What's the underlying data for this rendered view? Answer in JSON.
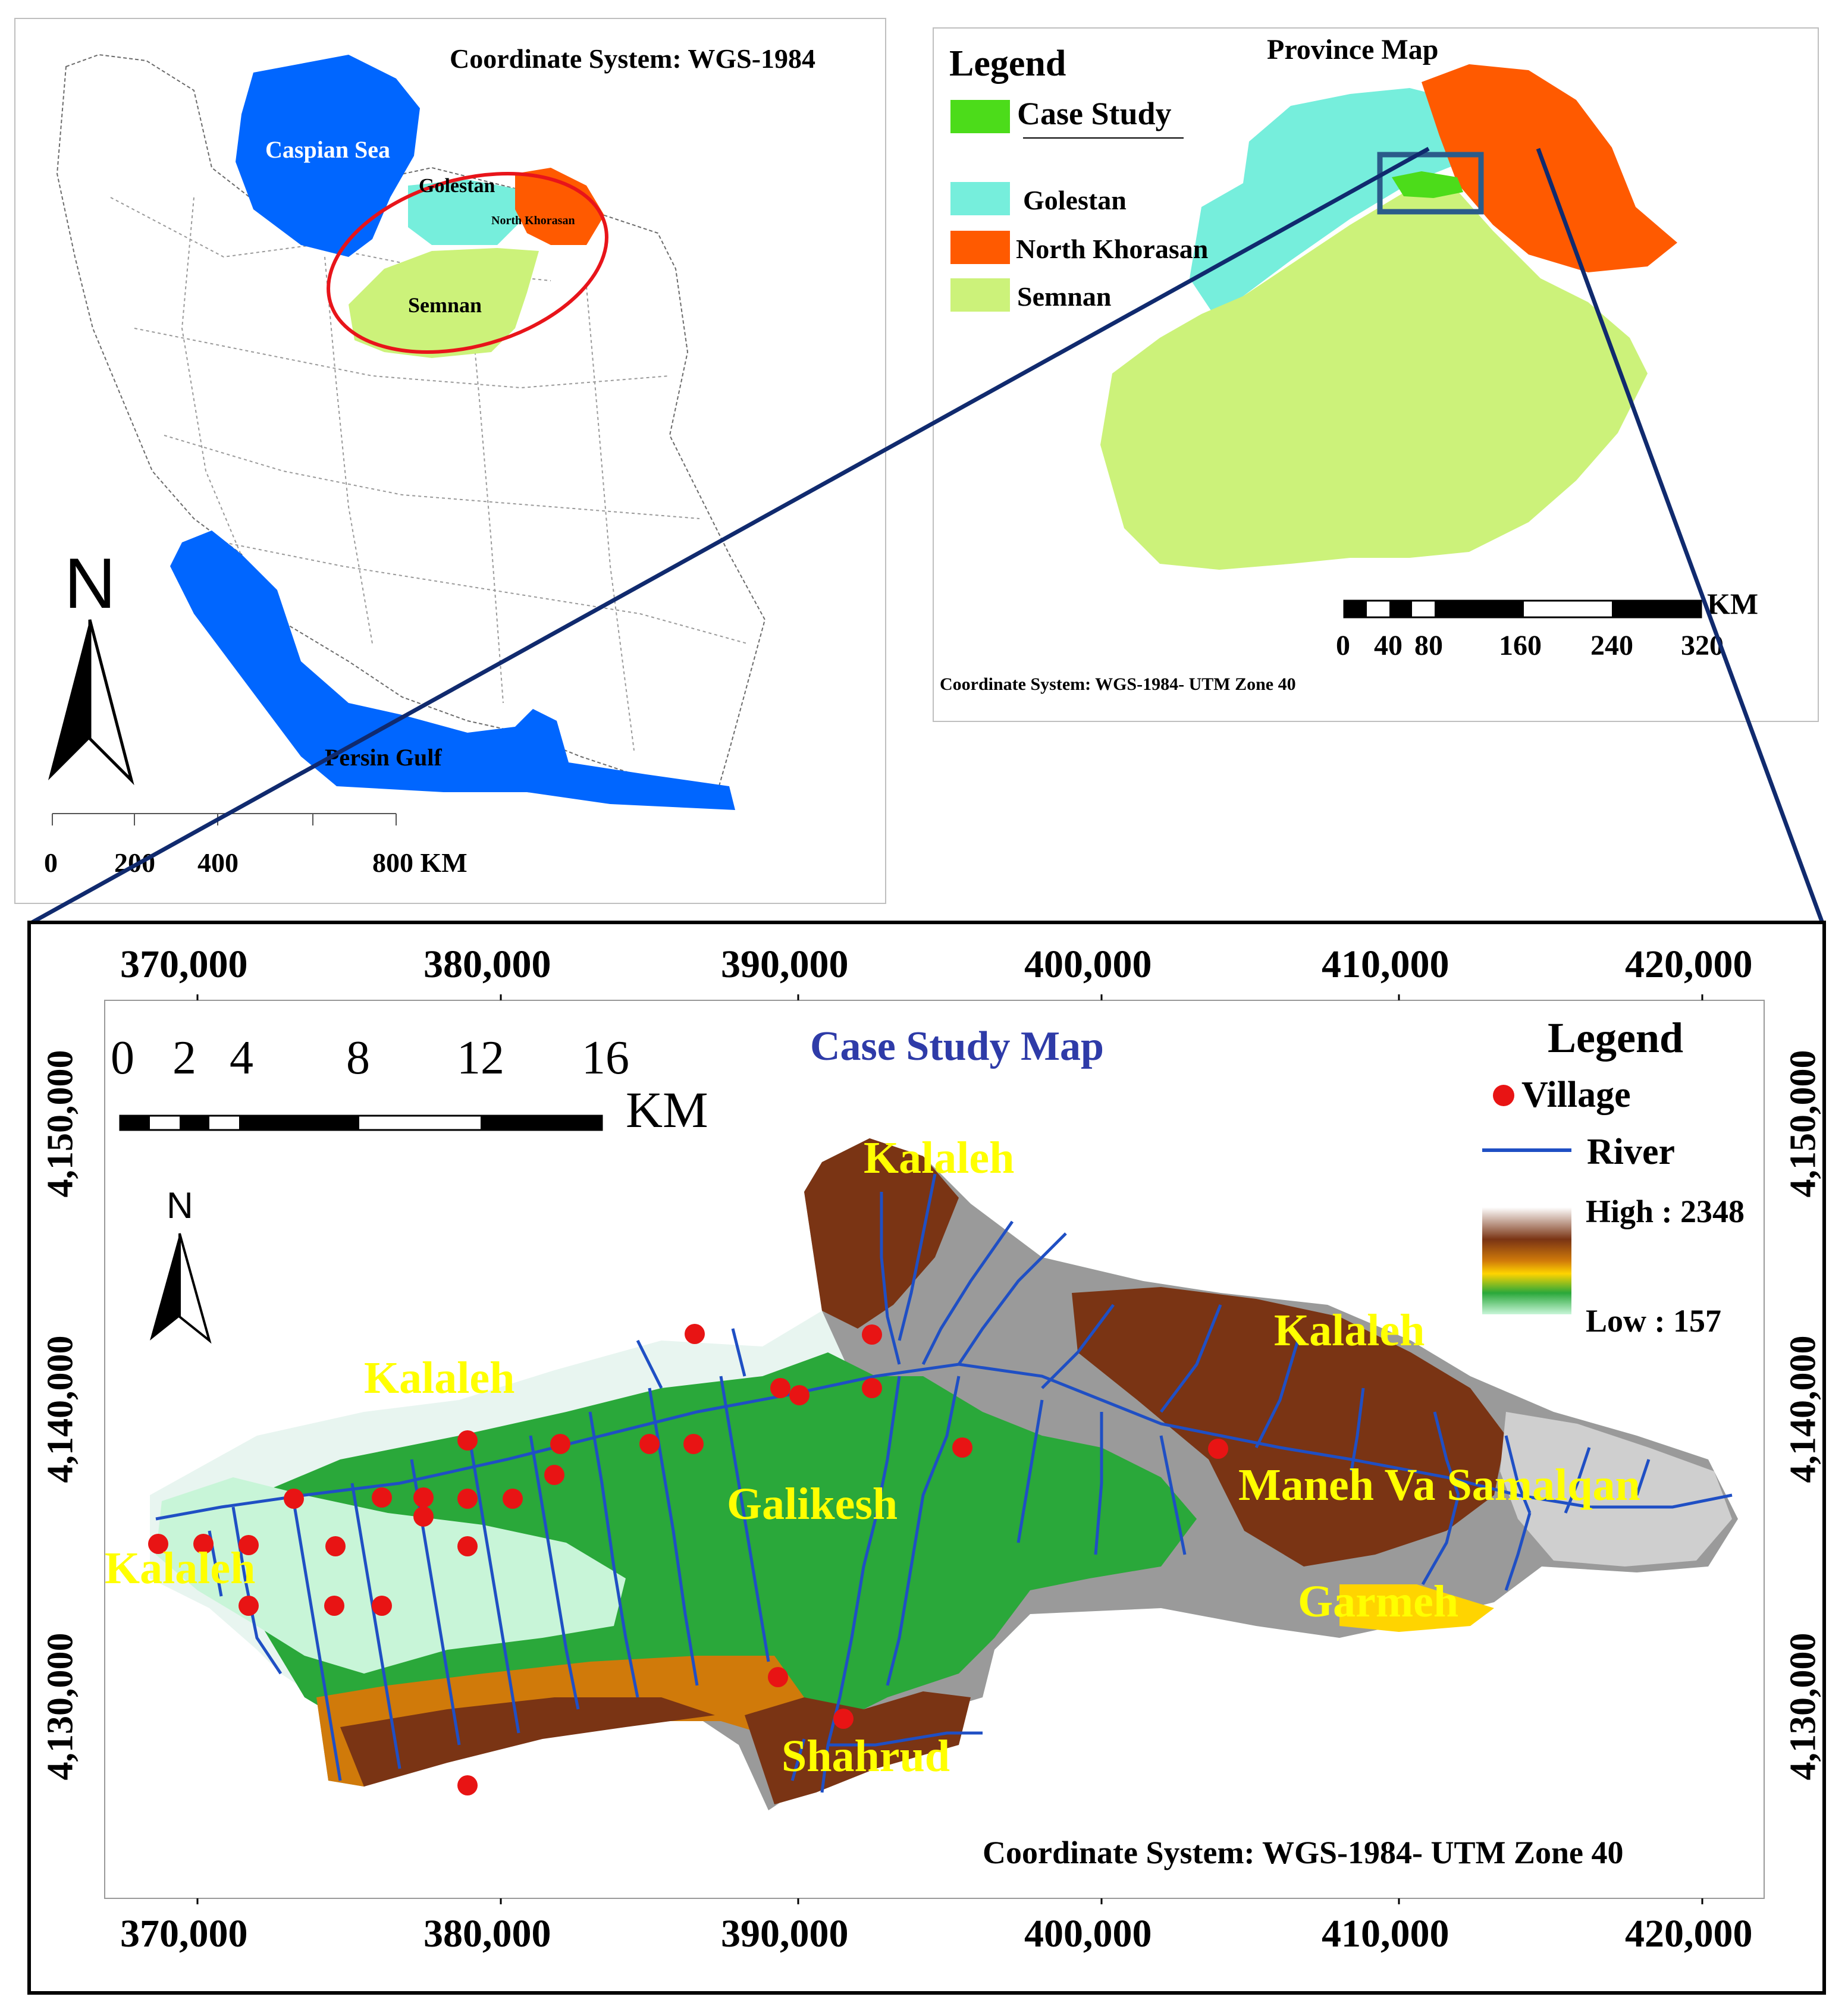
{
  "iran_map": {
    "coordinate_system": "Coordinate System: WGS-1984",
    "labels": {
      "caspian": "Caspian Sea",
      "golestan": "Golestan",
      "north_khorasan": "North Khorasan",
      "semnan": "Semnan",
      "persian_gulf": "Persin Gulf",
      "north": "N"
    },
    "scale_ticks": [
      "0",
      "200",
      "400",
      "800 KM"
    ]
  },
  "province_map": {
    "title": "Province Map",
    "legend_title": "Legend",
    "legend_items": [
      {
        "label": "Case Study",
        "color": "#4cdc1a"
      },
      {
        "label": "Golestan",
        "color": "#76eedc"
      },
      {
        "label": "North Khorasan",
        "color": "#ff5a00"
      },
      {
        "label": "Semnan",
        "color": "#ccf27a"
      }
    ],
    "scale_unit": "KM",
    "scale_ticks": [
      "0",
      "40",
      "80",
      "160",
      "240",
      "320"
    ],
    "coordinate_system": "Coordinate System: WGS-1984- UTM Zone 40"
  },
  "case_map": {
    "title": "Case Study Map",
    "x_ticks": [
      "370,000",
      "380,000",
      "390,000",
      "400,000",
      "410,000",
      "420,000"
    ],
    "y_ticks": [
      "4,150,000",
      "4,140,000",
      "4,130,000"
    ],
    "scale_ticks": [
      "0",
      "2",
      "4",
      "8",
      "12",
      "16"
    ],
    "scale_unit": "KM",
    "north": "N",
    "legend_title": "Legend",
    "legend": {
      "village": "Village",
      "river": "River",
      "high": "High : 2348",
      "low": "Low : 157"
    },
    "colors": {
      "village": "#e81414",
      "river": "#1f4fc4",
      "place_label": "#ffff00",
      "title": "#2e3ba8"
    },
    "places": [
      "Kalaleh",
      "Kalaleh",
      "Kalaleh",
      "Kalaleh",
      "Galikesh",
      "Maneh Va Samalqan",
      "Garmeh",
      "Shahrud"
    ],
    "coordinate_system": "Coordinate System: WGS-1984- UTM Zone 40"
  }
}
